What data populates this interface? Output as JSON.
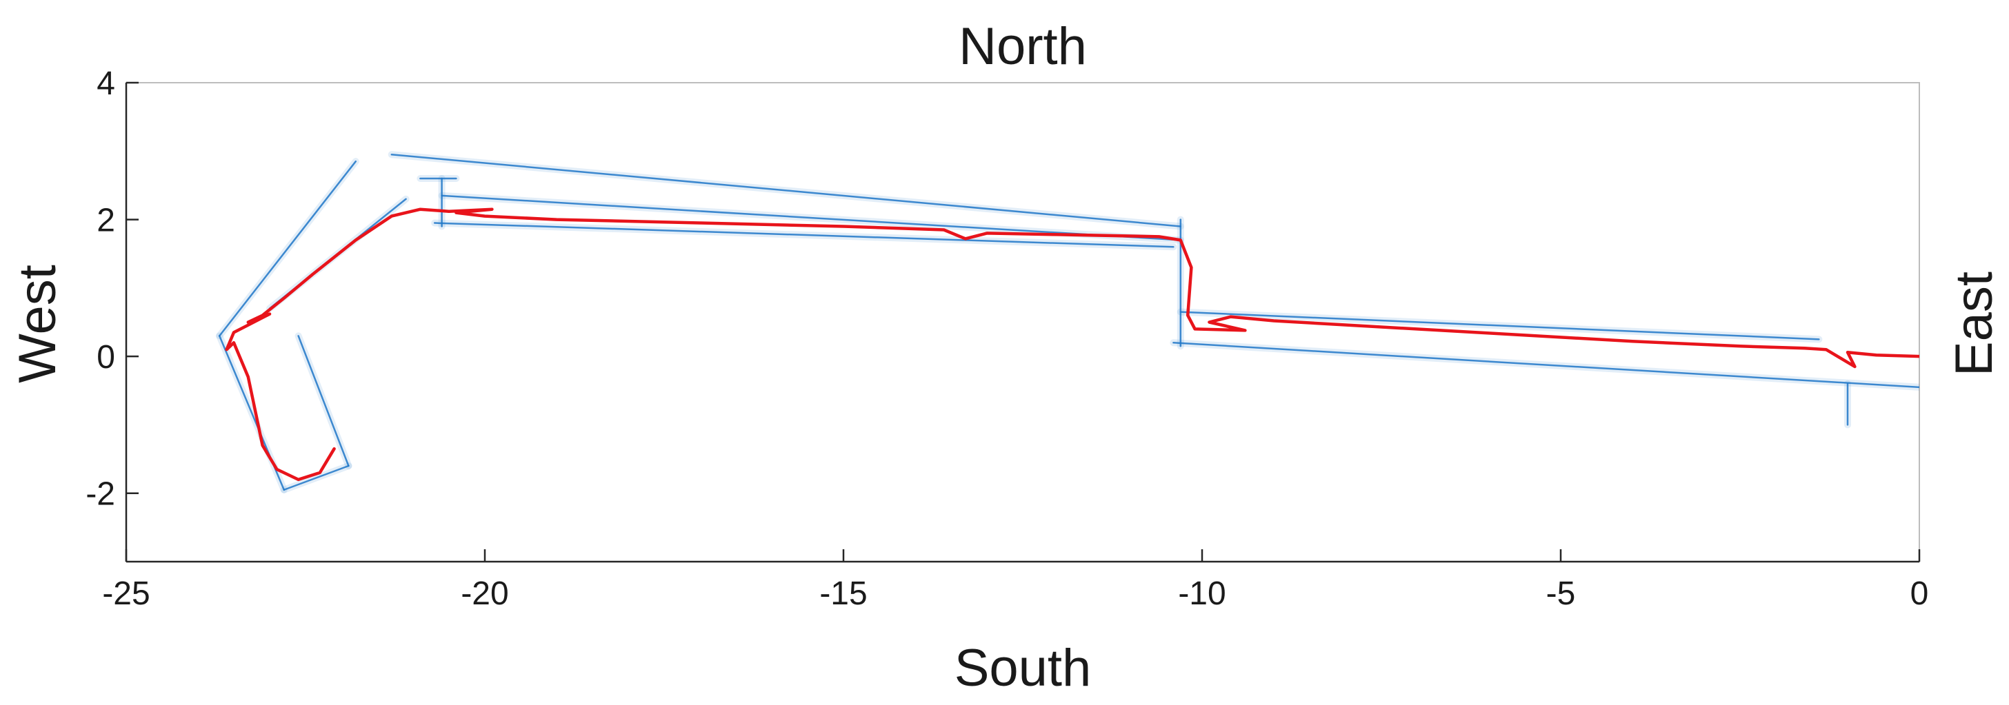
{
  "chart_data": {
    "type": "line",
    "title": "North",
    "xlabel": "South",
    "ylabel": "West",
    "right_label": "East",
    "xlim": [
      -25,
      0
    ],
    "ylim": [
      -3,
      4
    ],
    "xticks": [
      -25,
      -20,
      -15,
      -10,
      -5,
      0
    ],
    "yticks": [
      -2,
      0,
      2,
      4
    ],
    "grid": false,
    "colors": {
      "trajectory": "#e8141b",
      "point_cloud": "#1f77c8",
      "axes": "#262626",
      "box": "#bdbdbd"
    },
    "series": [
      {
        "role": "trajectory",
        "points": [
          [
            0,
            0
          ],
          [
            -0.6,
            0.02
          ],
          [
            -1.0,
            0.06
          ],
          [
            -0.9,
            -0.15
          ],
          [
            -1.3,
            0.1
          ],
          [
            -1.6,
            0.12
          ],
          [
            -2.5,
            0.15
          ],
          [
            -4.0,
            0.22
          ],
          [
            -6.0,
            0.34
          ],
          [
            -8.0,
            0.46
          ],
          [
            -9.0,
            0.52
          ],
          [
            -9.6,
            0.58
          ],
          [
            -9.9,
            0.5
          ],
          [
            -9.4,
            0.38
          ],
          [
            -10.1,
            0.4
          ],
          [
            -10.2,
            0.6
          ],
          [
            -10.15,
            1.3
          ],
          [
            -10.3,
            1.7
          ],
          [
            -10.6,
            1.75
          ],
          [
            -12.0,
            1.78
          ],
          [
            -13.0,
            1.8
          ],
          [
            -13.3,
            1.72
          ],
          [
            -13.6,
            1.85
          ],
          [
            -15.0,
            1.9
          ],
          [
            -17.0,
            1.95
          ],
          [
            -19.0,
            2.0
          ],
          [
            -20.0,
            2.05
          ],
          [
            -20.4,
            2.1
          ],
          [
            -19.9,
            2.15
          ],
          [
            -20.5,
            2.12
          ],
          [
            -20.9,
            2.15
          ],
          [
            -21.3,
            2.05
          ],
          [
            -21.8,
            1.7
          ],
          [
            -22.4,
            1.2
          ],
          [
            -22.8,
            0.85
          ],
          [
            -23.1,
            0.6
          ],
          [
            -23.3,
            0.5
          ],
          [
            -23.0,
            0.62
          ],
          [
            -23.5,
            0.35
          ],
          [
            -23.6,
            0.1
          ],
          [
            -23.5,
            0.2
          ],
          [
            -23.3,
            -0.3
          ],
          [
            -23.2,
            -0.8
          ],
          [
            -23.1,
            -1.3
          ],
          [
            -22.9,
            -1.65
          ],
          [
            -22.6,
            -1.8
          ],
          [
            -22.3,
            -1.7
          ],
          [
            -22.1,
            -1.35
          ]
        ]
      },
      {
        "role": "point_cloud",
        "segments": [
          [
            [
              -21.3,
              2.95
            ],
            [
              -10.3,
              1.9
            ]
          ],
          [
            [
              -20.6,
              2.35
            ],
            [
              -10.3,
              1.7
            ]
          ],
          [
            [
              -20.7,
              1.95
            ],
            [
              -10.4,
              1.6
            ]
          ],
          [
            [
              -10.3,
              0.65
            ],
            [
              -1.4,
              0.25
            ]
          ],
          [
            [
              -10.4,
              0.2
            ],
            [
              0,
              -0.45
            ]
          ],
          [
            [
              -10.3,
              2.0
            ],
            [
              -10.3,
              0.15
            ]
          ],
          [
            [
              -21.8,
              2.85
            ],
            [
              -23.7,
              0.3
            ]
          ],
          [
            [
              -21.1,
              2.3
            ],
            [
              -23.0,
              0.7
            ]
          ],
          [
            [
              -23.7,
              0.3
            ],
            [
              -22.8,
              -1.95
            ]
          ],
          [
            [
              -22.8,
              -1.95
            ],
            [
              -21.9,
              -1.6
            ]
          ],
          [
            [
              -21.9,
              -1.6
            ],
            [
              -22.6,
              0.3
            ]
          ],
          [
            [
              -20.6,
              2.6
            ],
            [
              -20.6,
              1.9
            ]
          ],
          [
            [
              -20.9,
              2.6
            ],
            [
              -20.4,
              2.6
            ]
          ],
          [
            [
              -1.0,
              -0.4
            ],
            [
              -1.0,
              -1.0
            ]
          ]
        ]
      }
    ]
  }
}
